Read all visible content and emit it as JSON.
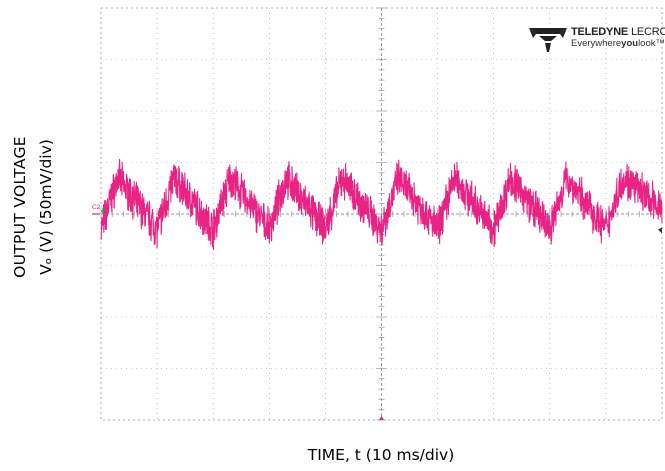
{
  "chart_data": {
    "type": "line",
    "xlabel": "TIME, t (10 ms/div)",
    "ylabel": "OUTPUT VOLTAGE",
    "ylabel_line2": "Vₒ (V) (50mV/div)",
    "x_divisions": 10,
    "y_divisions": 8,
    "xlim": [
      0,
      100
    ],
    "x_unit": "ms",
    "y_unit": "mV",
    "ylim": [
      -200,
      200
    ],
    "grid": true,
    "channel_label": "C2",
    "series": [
      {
        "color": "#e8177d",
        "waveform": "sawtooth",
        "period_ms": 10,
        "peak_to_peak_mV": 50,
        "noise": true,
        "x": [
          0,
          3,
          10,
          13,
          20,
          23,
          30,
          33,
          40,
          43,
          50,
          53,
          60,
          63,
          70,
          73,
          80,
          83,
          90,
          93,
          100
        ],
        "y": [
          -15,
          35,
          -15,
          35,
          -15,
          35,
          -15,
          35,
          -15,
          35,
          -15,
          35,
          -15,
          35,
          -15,
          35,
          -15,
          35,
          -15,
          35,
          5
        ]
      }
    ],
    "colors": {
      "trace": "#e8177d",
      "grid": "#9a9a9a",
      "marker": "#2a9d3a"
    }
  },
  "logo": {
    "brand_bold": "TELEDYNE",
    "brand_light": "LECROY",
    "tagline_pre": "Everywhere",
    "tagline_bold": "you",
    "tagline_post": "look",
    "tm": "™"
  }
}
